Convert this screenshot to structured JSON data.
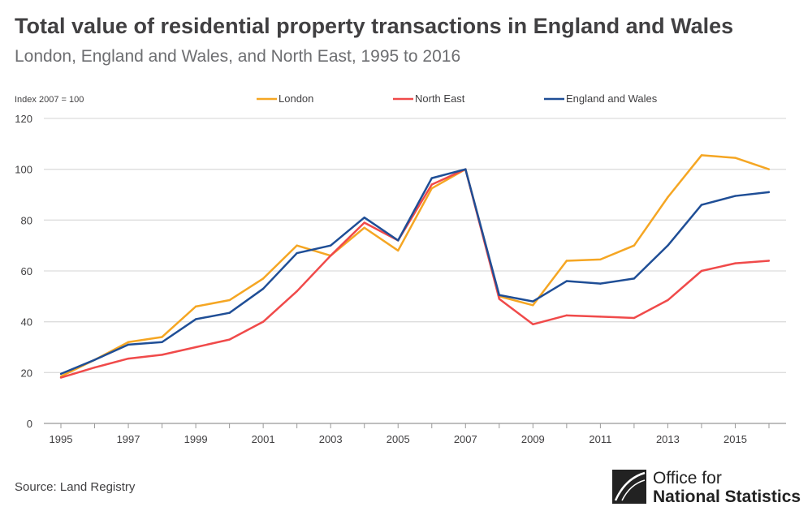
{
  "chart_data": {
    "type": "line",
    "title": "Total value of residential property transactions in England and Wales",
    "subtitle": "London, England and Wales, and North East, 1995 to 2016",
    "ylabel": "Index 2007 = 100",
    "xlabel": "",
    "x": [
      1995,
      1996,
      1997,
      1998,
      1999,
      2000,
      2001,
      2002,
      2003,
      2004,
      2005,
      2006,
      2007,
      2008,
      2009,
      2010,
      2011,
      2012,
      2013,
      2014,
      2015,
      2016
    ],
    "xtick_labels": [
      "1995",
      "1997",
      "1999",
      "2001",
      "2003",
      "2005",
      "2007",
      "2009",
      "2011",
      "2013",
      "2015"
    ],
    "ytick_labels": [
      "0",
      "20",
      "40",
      "60",
      "80",
      "100",
      "120"
    ],
    "ylim": [
      0,
      120
    ],
    "grid": true,
    "legend_position": "top",
    "series": [
      {
        "name": "London",
        "color": "#f5a623",
        "values": [
          18.5,
          25,
          32,
          34,
          46,
          48.5,
          57,
          70,
          66,
          77,
          68,
          92.5,
          100,
          50,
          46.5,
          64,
          64.5,
          70,
          89,
          105.5,
          104.5,
          100
        ]
      },
      {
        "name": "North East",
        "color": "#f04a4a",
        "values": [
          18,
          22,
          25.5,
          27,
          30,
          33,
          40,
          52,
          66,
          79,
          72,
          94,
          100,
          49,
          39,
          42.5,
          42,
          41.5,
          48.5,
          60,
          63,
          64
        ]
      },
      {
        "name": "England and Wales",
        "color": "#1f4e96",
        "values": [
          19.5,
          25,
          31,
          32,
          41,
          43.5,
          53,
          67,
          70,
          81,
          72,
          96.5,
          100,
          50.5,
          48,
          56,
          55,
          57,
          70,
          86,
          89.5,
          91
        ]
      }
    ]
  },
  "source": "Source: Land Registry",
  "logo": {
    "line1": "Office for",
    "line2": "National Statistics"
  }
}
